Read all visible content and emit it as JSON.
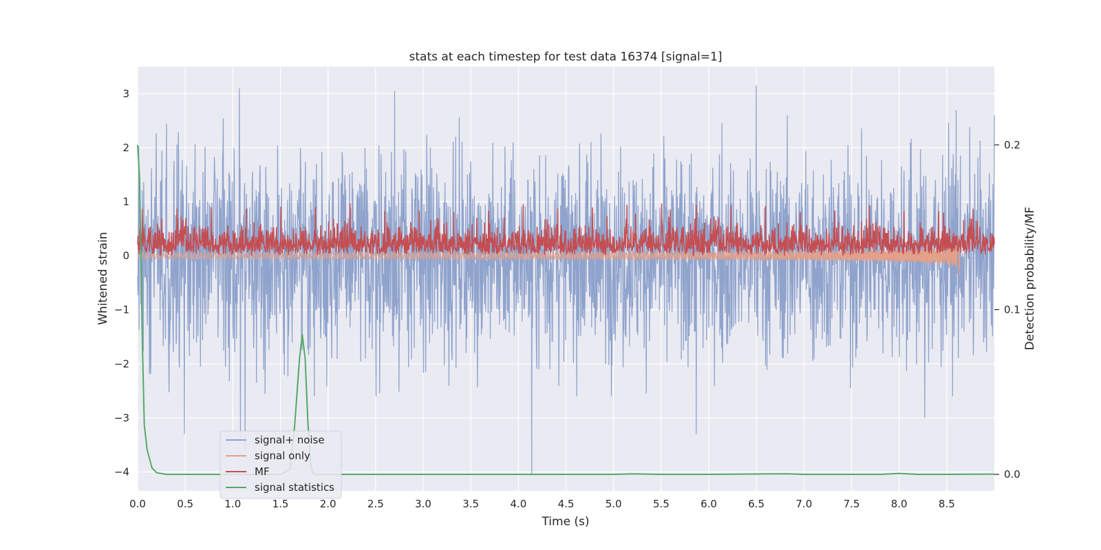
{
  "chart_data": {
    "type": "line",
    "title": "stats at each timestep for test data 16374 [signal=1]",
    "xlabel": "Time (s)",
    "ylabel": "Whitened strain",
    "y2label": "Detection probability/MF",
    "xlim": [
      0.0,
      9.0
    ],
    "ylim": [
      -4.35,
      3.5
    ],
    "y2lim": [
      -0.01,
      0.2475
    ],
    "xticks": [
      "0.0",
      "0.5",
      "1.0",
      "1.5",
      "2.0",
      "2.5",
      "3.0",
      "3.5",
      "4.0",
      "4.5",
      "5.0",
      "5.5",
      "6.0",
      "6.5",
      "7.0",
      "7.5",
      "8.0",
      "8.5"
    ],
    "yticks": [
      "3",
      "2",
      "1",
      "0",
      "−1",
      "−2",
      "−3",
      "−4"
    ],
    "y2ticks": [
      "0.2",
      "0.1",
      "0.0"
    ],
    "grid": true,
    "legend_placement": "lower-left",
    "colors": {
      "background": "#eaeaf2",
      "grid": "#ffffff",
      "signal_noise": "#8fa3cc",
      "signal_only": "#e3a08a",
      "mf": "#c44e52",
      "signal_statistics": "#55a868"
    },
    "series": [
      {
        "name": "signal+ noise",
        "axis": "left",
        "description_values": {
          "x_range": [
            0.0,
            9.0
          ],
          "approx_amplitude": 1.3,
          "notable_points": [
            [
              0.49,
              -3.3
            ],
            [
              1.07,
              3.1
            ],
            [
              1.08,
              -3.4
            ],
            [
              1.13,
              -3.6
            ],
            [
              2.7,
              3.05
            ],
            [
              4.14,
              -4.05
            ],
            [
              5.87,
              -3.3
            ],
            [
              6.5,
              3.15
            ],
            [
              8.27,
              -3.0
            ],
            [
              8.6,
              2.7
            ]
          ]
        }
      },
      {
        "name": "signal only",
        "axis": "left",
        "description_values": {
          "x_range": [
            0.0,
            8.64
          ],
          "envelope_start": 0.05,
          "envelope_peak": 0.6,
          "merger_time": 8.64
        }
      },
      {
        "name": "MF",
        "axis": "left",
        "description_values": {
          "x_range": [
            0.0,
            9.0
          ],
          "baseline": 0.0,
          "typical": 0.25,
          "max": 1.0
        }
      },
      {
        "name": "signal statistics",
        "axis": "right",
        "x": [
          0.0,
          0.02,
          0.05,
          0.07,
          0.1,
          0.15,
          0.2,
          0.3,
          0.5,
          1.0,
          1.5,
          1.6,
          1.65,
          1.7,
          1.73,
          1.76,
          1.79,
          1.82,
          1.85,
          1.9,
          2.0,
          3.0,
          4.0,
          5.0,
          5.2,
          5.5,
          6.0,
          6.8,
          7.0,
          7.5,
          7.8,
          8.0,
          8.2,
          8.5,
          9.0
        ],
        "values": [
          0.2,
          0.18,
          0.08,
          0.03,
          0.015,
          0.004,
          0.001,
          0.0,
          0.0,
          0.0,
          0.0,
          0.003,
          0.03,
          0.07,
          0.085,
          0.07,
          0.03,
          0.005,
          0.0,
          0.0,
          0.0,
          0.0,
          0.0,
          0.0,
          0.0003,
          0.0,
          0.0,
          0.0004,
          0.0,
          0.0,
          0.0,
          0.0006,
          0.0,
          0.0,
          0.0002
        ]
      }
    ]
  }
}
